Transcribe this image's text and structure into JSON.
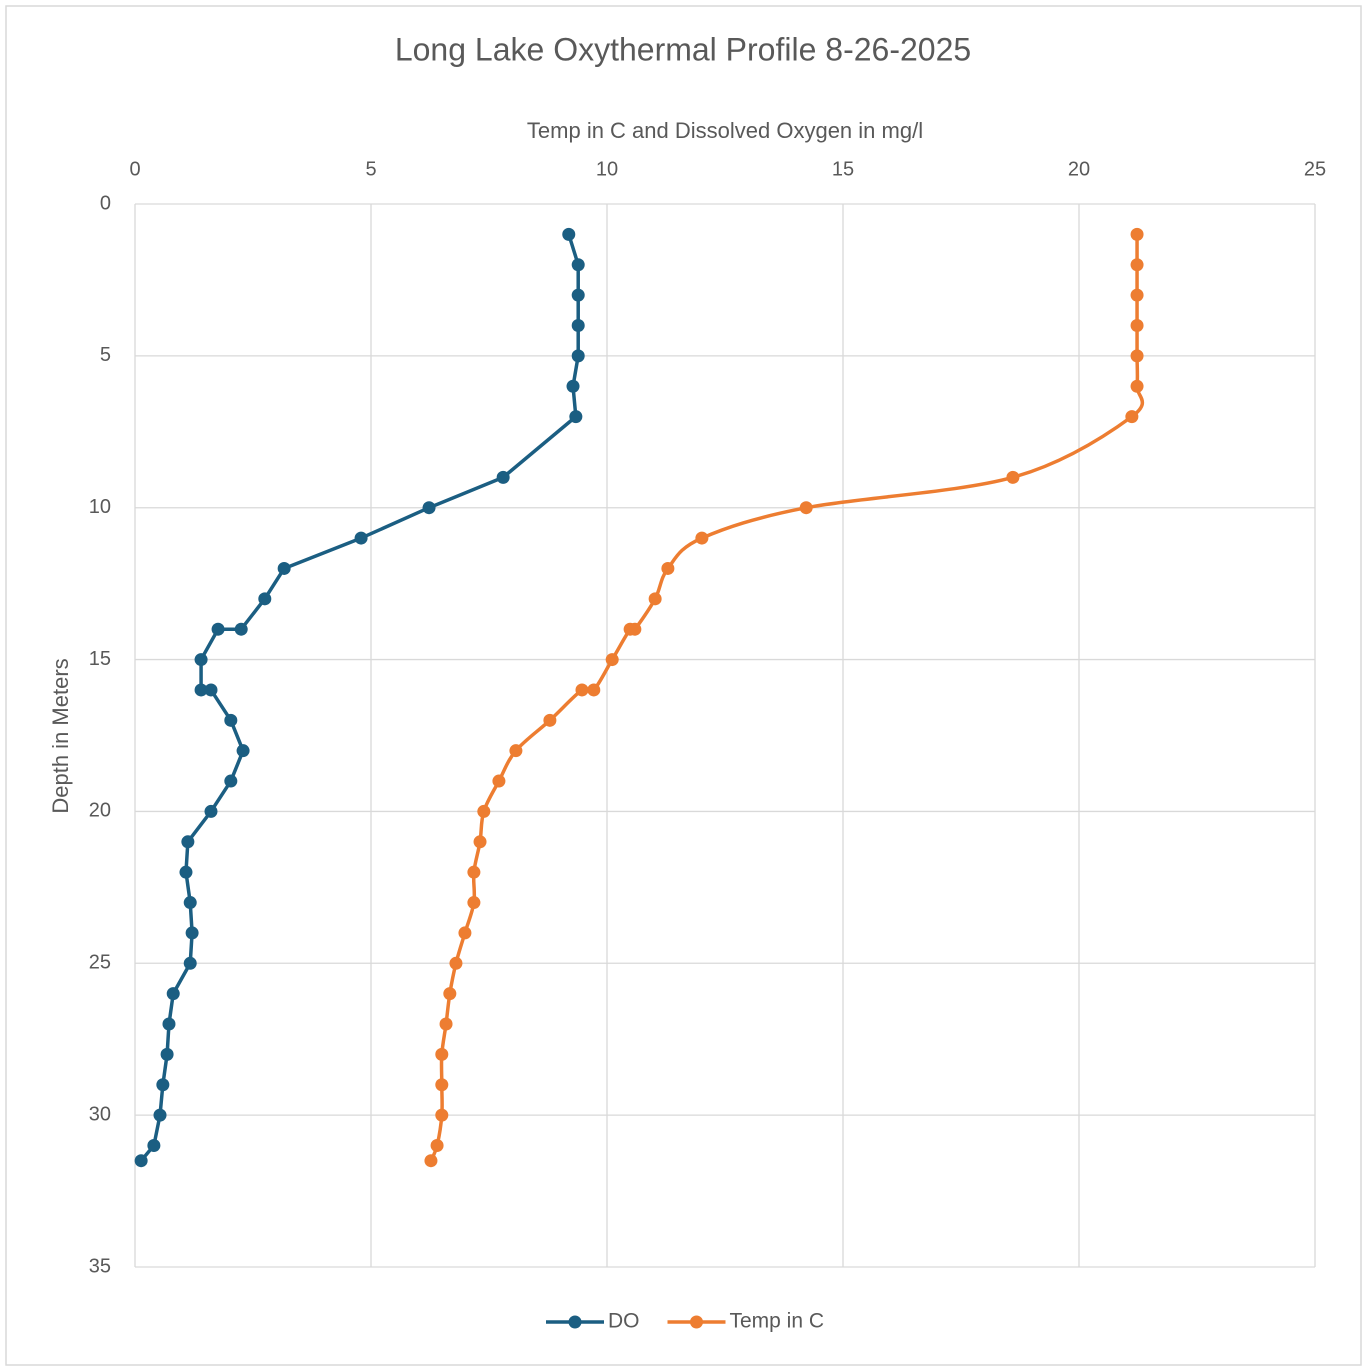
{
  "chart_data": {
    "type": "line",
    "title": "Long Lake Oxythermal Profile 8-26-2025",
    "x_label": "Temp in C and Dissolved Oxygen in mg/l",
    "y_label": "Depth in Meters",
    "y": [
      1,
      2,
      3,
      4,
      5,
      6,
      7,
      9,
      10,
      11,
      12,
      13,
      14,
      14,
      15,
      16,
      16,
      17,
      18,
      19,
      20,
      21,
      22,
      23,
      24,
      25,
      26,
      27,
      28,
      29,
      30,
      31,
      31.5
    ],
    "series": [
      {
        "name": "DO",
        "color": "#1b5e82",
        "smooth": false,
        "values": [
          9.19,
          9.39,
          9.39,
          9.39,
          9.39,
          9.28,
          9.34,
          7.8,
          6.23,
          4.79,
          3.16,
          2.75,
          2.25,
          1.76,
          1.4,
          1.4,
          1.61,
          2.03,
          2.29,
          2.03,
          1.61,
          1.12,
          1.08,
          1.17,
          1.21,
          1.17,
          0.81,
          0.72,
          0.68,
          0.59,
          0.53,
          0.4,
          0.13
        ]
      },
      {
        "name": "Temp in C",
        "color": "#ed7d31",
        "smooth": true,
        "values": [
          21.23,
          21.23,
          21.23,
          21.23,
          21.23,
          21.23,
          21.12,
          18.6,
          14.22,
          12.01,
          11.29,
          11.02,
          10.59,
          10.49,
          10.11,
          9.72,
          9.47,
          8.79,
          8.07,
          7.71,
          7.39,
          7.31,
          7.18,
          7.18,
          6.99,
          6.8,
          6.67,
          6.59,
          6.5,
          6.5,
          6.5,
          6.4,
          6.27
        ]
      }
    ],
    "xlim": [
      0,
      25
    ],
    "xticks": [
      0,
      5,
      10,
      15,
      20,
      25
    ],
    "ylim": [
      0,
      35
    ],
    "yticks": [
      0,
      5,
      10,
      15,
      20,
      25,
      30,
      35
    ],
    "y_inverted": true,
    "x_axis_position": "top",
    "grid": true,
    "legend": "bottom"
  }
}
